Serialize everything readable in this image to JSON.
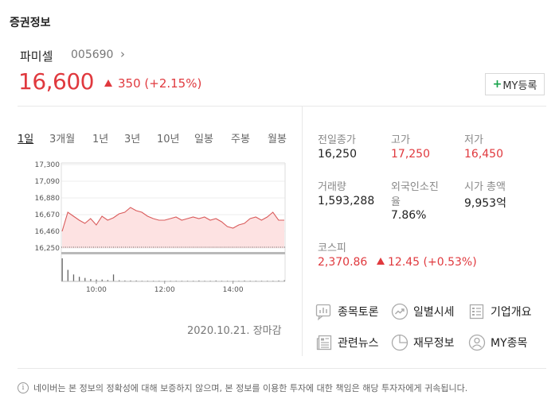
{
  "section_title": "증권정보",
  "stock": {
    "name": "파미셀",
    "code": "005690",
    "price": "16,600",
    "change": "350 (+2.15%)",
    "my_button_plus": "+",
    "my_button_label": "MY등록"
  },
  "tabs": [
    "1일",
    "3개월",
    "1년",
    "3년",
    "10년",
    "일봉",
    "주봉",
    "월봉"
  ],
  "active_tab": "1일",
  "chart_data": {
    "type": "line",
    "y_ticks": [
      "17,300",
      "17,090",
      "16,880",
      "16,670",
      "16,460",
      "16,250"
    ],
    "ylim": [
      16250,
      17300
    ],
    "x_ticks": [
      "10:00",
      "12:00",
      "14:00"
    ],
    "baseline": 16250,
    "x": [
      "09:00",
      "09:10",
      "09:20",
      "09:30",
      "09:40",
      "09:50",
      "10:00",
      "10:10",
      "10:20",
      "10:30",
      "10:40",
      "10:50",
      "11:00",
      "11:10",
      "11:20",
      "11:30",
      "11:40",
      "11:50",
      "12:00",
      "12:10",
      "12:20",
      "12:30",
      "12:40",
      "12:50",
      "13:00",
      "13:10",
      "13:20",
      "13:30",
      "13:40",
      "13:50",
      "14:00",
      "14:10",
      "14:20",
      "14:30",
      "14:40",
      "14:50",
      "15:00",
      "15:10",
      "15:20",
      "15:30"
    ],
    "values": [
      16460,
      16700,
      16650,
      16600,
      16560,
      16620,
      16540,
      16650,
      16600,
      16630,
      16680,
      16700,
      16760,
      16720,
      16700,
      16650,
      16620,
      16600,
      16600,
      16620,
      16640,
      16600,
      16620,
      16640,
      16620,
      16640,
      16600,
      16620,
      16580,
      16520,
      16500,
      16540,
      16560,
      16620,
      16640,
      16600,
      16640,
      16700,
      16600,
      16600
    ],
    "volume": [
      1.0,
      0.5,
      0.3,
      0.2,
      0.15,
      0.1,
      0.08,
      0.08,
      0.06,
      0.3,
      0.05,
      0.04,
      0.04,
      0.04,
      0.03,
      0.03,
      0.03,
      0.03,
      0.03,
      0.03,
      0.03,
      0.03,
      0.03,
      0.03,
      0.04,
      0.03,
      0.03,
      0.04,
      0.03,
      0.03,
      0.03,
      0.03,
      0.04,
      0.03,
      0.03,
      0.03,
      0.03,
      0.03,
      0.04,
      0.05
    ]
  },
  "date_stamp": "2020.10.21. 장마감",
  "info": {
    "prev_close_label": "전일종가",
    "prev_close": "16,250",
    "high_label": "고가",
    "high": "17,250",
    "low_label": "저가",
    "low": "16,450",
    "volume_label": "거래량",
    "volume": "1,593,288",
    "foreign_label_1": "외국인소진",
    "foreign_label_2": "율",
    "foreign": "7.86%",
    "mktcap_label": "시가 총액",
    "mktcap": "9,953억",
    "kospi_label": "코스피",
    "kospi": "2,370.86",
    "kospi_change": "12.45 (+0.53%)"
  },
  "links": {
    "discussion": "종목토론",
    "daily": "일별시세",
    "company": "기업개요",
    "news": "관련뉴스",
    "finance": "재무정보",
    "my_stock": "MY종목"
  },
  "notice": "네이버는 본 정보의 정확성에 대해 보증하지 않으며, 본 정보를 이용한 투자에 대한 책임은 해당 투자자에게 귀속됩니다.",
  "colors": {
    "up": "#e0393e",
    "accent_green": "#16a34a"
  }
}
